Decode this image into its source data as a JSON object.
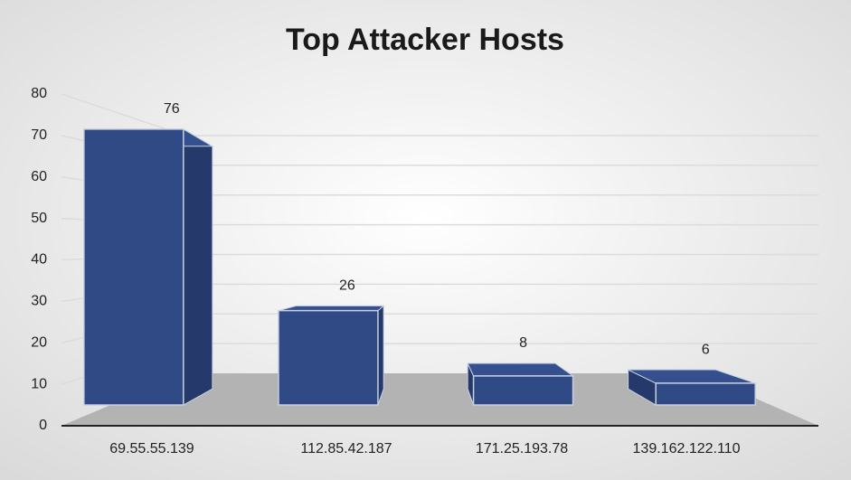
{
  "chart_data": {
    "type": "bar3d",
    "title": "Top Attacker Hosts",
    "categories": [
      "69.55.55.139",
      "112.85.42.187",
      "171.25.193.78",
      "139.162.122.110"
    ],
    "values": [
      76,
      26,
      8,
      6
    ],
    "color": "#2f4a85",
    "ylim": [
      0,
      80
    ],
    "yticks": [
      0,
      10,
      20,
      30,
      40,
      50,
      60,
      70,
      80
    ],
    "grid": true
  }
}
